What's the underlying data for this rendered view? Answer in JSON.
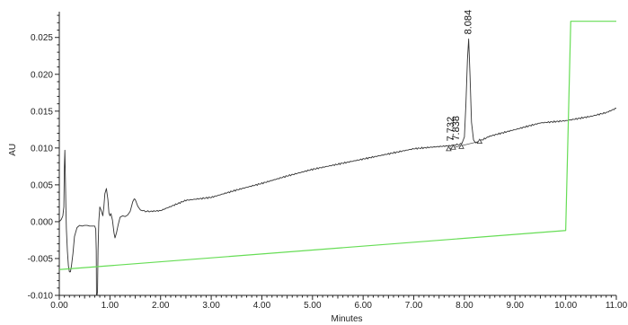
{
  "chart_data": {
    "type": "line",
    "title": "",
    "xlabel": "Minutes",
    "ylabel": "AU",
    "xlim": [
      0,
      11
    ],
    "ylim": [
      -0.01,
      0.0285
    ],
    "x_ticks": [
      0,
      1,
      2,
      3,
      4,
      5,
      6,
      7,
      8,
      9,
      10,
      11
    ],
    "x_tick_labels": [
      "0.00",
      "1.00",
      "2.00",
      "3.00",
      "4.00",
      "5.00",
      "6.00",
      "7.00",
      "8.00",
      "9.00",
      "10.00",
      "11.00"
    ],
    "y_ticks": [
      -0.01,
      -0.005,
      0,
      0.005,
      0.01,
      0.015,
      0.02,
      0.025
    ],
    "y_tick_labels": [
      "-0.010",
      "-0.005",
      "0.000",
      "0.005",
      "0.010",
      "0.015",
      "0.020",
      "0.025"
    ],
    "grid": false,
    "colors": {
      "signal": "#333333",
      "gradient": "#66dd55",
      "axis": "#222222"
    },
    "series": [
      {
        "role": "signal",
        "x": [
          0.0,
          0.04,
          0.07,
          0.09,
          0.1,
          0.11,
          0.12,
          0.13,
          0.14,
          0.16,
          0.18,
          0.2,
          0.22,
          0.24,
          0.27,
          0.3,
          0.35,
          0.4,
          0.45,
          0.5,
          0.55,
          0.6,
          0.65,
          0.7,
          0.72,
          0.73,
          0.735,
          0.745,
          0.755,
          0.765,
          0.78,
          0.8,
          0.83,
          0.86,
          0.88,
          0.9,
          0.93,
          0.96,
          0.98,
          1.0,
          1.02,
          1.05,
          1.08,
          1.1,
          1.13,
          1.16,
          1.2,
          1.25,
          1.3,
          1.35,
          1.4,
          1.45,
          1.48,
          1.5,
          1.55,
          1.6,
          1.7,
          1.8,
          2.0,
          2.5,
          3.0,
          3.5,
          4.0,
          4.5,
          5.0,
          5.5,
          6.0,
          6.5,
          7.0,
          7.5,
          7.7,
          7.8,
          7.9,
          7.95,
          8.0,
          8.03,
          8.06,
          8.084,
          8.11,
          8.14,
          8.18,
          8.22,
          8.28,
          8.35,
          8.5,
          9.0,
          9.5,
          10.0,
          10.5,
          10.8,
          11.0
        ],
        "y": [
          0.0,
          0.0003,
          0.0008,
          0.002,
          0.0075,
          0.0097,
          0.006,
          0.002,
          -0.001,
          -0.004,
          -0.006,
          -0.0068,
          -0.0068,
          -0.006,
          -0.0043,
          -0.002,
          -0.0008,
          -0.0005,
          -0.0006,
          -0.0005,
          -0.0005,
          -0.0006,
          -0.0006,
          -0.0006,
          -0.001,
          -0.004,
          -0.01,
          -0.01,
          -0.0095,
          -0.004,
          0.0,
          0.002,
          0.0015,
          0.0008,
          0.002,
          0.0038,
          0.0045,
          0.003,
          0.0012,
          0.0008,
          0.0011,
          0.0002,
          -0.0015,
          -0.0022,
          -0.0015,
          -0.0005,
          0.0006,
          0.0008,
          0.0007,
          0.0009,
          0.0014,
          0.0027,
          0.0031,
          0.003,
          0.0021,
          0.0016,
          0.0014,
          0.0014,
          0.0015,
          0.0029,
          0.0033,
          0.0043,
          0.0052,
          0.0062,
          0.0071,
          0.0078,
          0.0085,
          0.0092,
          0.0099,
          0.0102,
          0.0103,
          0.0104,
          0.0105,
          0.0106,
          0.0115,
          0.016,
          0.022,
          0.0248,
          0.02,
          0.0135,
          0.0111,
          0.0107,
          0.0109,
          0.0111,
          0.0116,
          0.0125,
          0.0134,
          0.0137,
          0.0143,
          0.0148,
          0.0154
        ]
      },
      {
        "role": "gradient",
        "x": [
          0.0,
          10.0,
          10.1,
          11.0
        ],
        "y": [
          -0.0065,
          -0.0012,
          0.0272,
          0.0272
        ]
      }
    ],
    "peak_labels": [
      {
        "text": "7.732",
        "x": 7.732,
        "y": 0.0103
      },
      {
        "text": "7.838",
        "x": 7.838,
        "y": 0.0104
      },
      {
        "text": "8.084",
        "x": 8.084,
        "y": 0.0248
      }
    ],
    "integration_markers": [
      {
        "x": 7.69,
        "y": 0.0099
      },
      {
        "x": 7.78,
        "y": 0.0101
      },
      {
        "x": 7.94,
        "y": 0.0102
      },
      {
        "x": 8.3,
        "y": 0.0109
      }
    ]
  }
}
